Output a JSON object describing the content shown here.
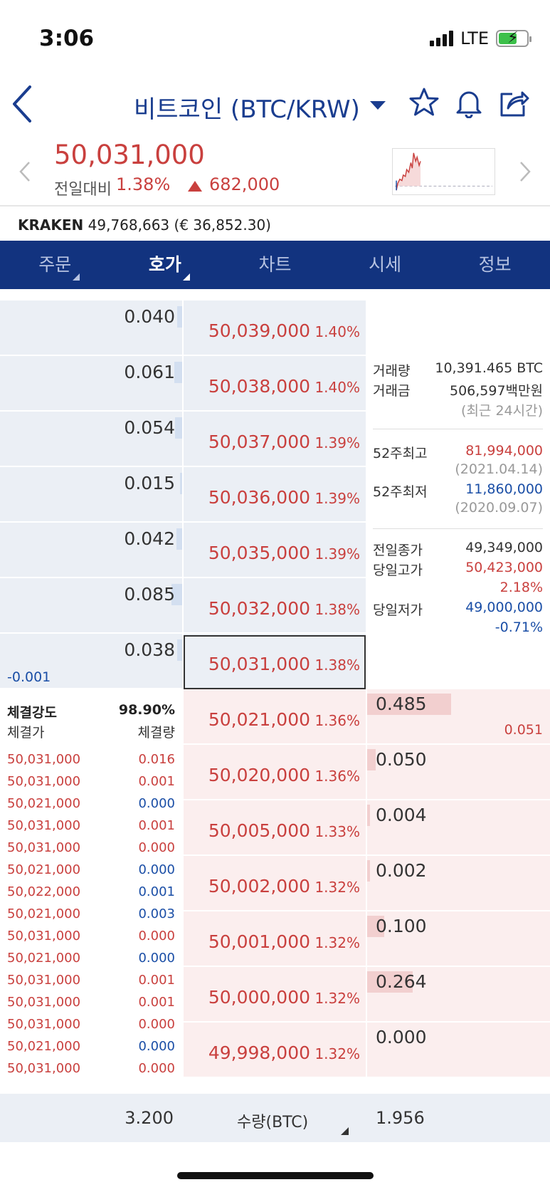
{
  "status": {
    "time": "3:06",
    "network": "LTE"
  },
  "header": {
    "title": "비트코인 (BTC/KRW)"
  },
  "price": {
    "current": "50,031,000",
    "diff_label": "전일대비",
    "diff_pct": "1.38%",
    "diff_amount": "682,000"
  },
  "kraken": {
    "name": "KRAKEN",
    "value": "49,768,663 (€ 36,852.30)"
  },
  "tabs": [
    {
      "label": "주문",
      "active": false
    },
    {
      "label": "호가",
      "active": true
    },
    {
      "label": "차트",
      "active": false
    },
    {
      "label": "시세",
      "active": false
    },
    {
      "label": "정보",
      "active": false
    }
  ],
  "asks": [
    {
      "qty": "0.040",
      "price": "50,039,000",
      "pct": "1.40%",
      "level": 0.04
    },
    {
      "qty": "0.061",
      "price": "50,038,000",
      "pct": "1.40%",
      "level": 0.061
    },
    {
      "qty": "0.054",
      "price": "50,037,000",
      "pct": "1.39%",
      "level": 0.054
    },
    {
      "qty": "0.015",
      "price": "50,036,000",
      "pct": "1.39%",
      "level": 0.015
    },
    {
      "qty": "0.042",
      "price": "50,035,000",
      "pct": "1.39%",
      "level": 0.042
    },
    {
      "qty": "0.085",
      "price": "50,032,000",
      "pct": "1.38%",
      "level": 0.085
    },
    {
      "qty": "0.038",
      "price": "50,031,000",
      "pct": "1.38%",
      "level": 0.038
    }
  ],
  "ask_change": "-0.001",
  "bids": [
    {
      "qty": "0.485",
      "price": "50,021,000",
      "pct": "1.36%",
      "level": 0.485
    },
    {
      "qty": "0.050",
      "price": "50,020,000",
      "pct": "1.36%",
      "level": 0.05
    },
    {
      "qty": "0.004",
      "price": "50,005,000",
      "pct": "1.33%",
      "level": 0.004
    },
    {
      "qty": "0.002",
      "price": "50,002,000",
      "pct": "1.32%",
      "level": 0.002
    },
    {
      "qty": "0.100",
      "price": "50,001,000",
      "pct": "1.32%",
      "level": 0.1
    },
    {
      "qty": "0.264",
      "price": "50,000,000",
      "pct": "1.32%",
      "level": 0.264
    },
    {
      "qty": "0.000",
      "price": "49,998,000",
      "pct": "1.32%",
      "level": 0.0
    }
  ],
  "bid_change": "0.051",
  "info": {
    "volume_label": "거래량",
    "volume": "10,391.465 BTC",
    "amount_label": "거래금",
    "amount": "506,597백만원",
    "period": "(최근 24시간)",
    "high52_label": "52주최고",
    "high52": "81,994,000",
    "high52_date": "(2021.04.14)",
    "low52_label": "52주최저",
    "low52": "11,860,000",
    "low52_date": "(2020.09.07)",
    "prev_close_label": "전일종가",
    "prev_close": "49,349,000",
    "day_high_label": "당일고가",
    "day_high": "50,423,000",
    "day_high_pct": "2.18%",
    "day_low_label": "당일저가",
    "day_low": "49,000,000",
    "day_low_pct": "-0.71%"
  },
  "trades": {
    "strength_label": "체결강도",
    "strength": "98.90%",
    "price_label": "체결가",
    "qty_label": "체결량",
    "rows": [
      {
        "price": "50,031,000",
        "qty": "0.016",
        "side": "buy"
      },
      {
        "price": "50,031,000",
        "qty": "0.001",
        "side": "buy"
      },
      {
        "price": "50,021,000",
        "qty": "0.000",
        "side": "sell"
      },
      {
        "price": "50,031,000",
        "qty": "0.001",
        "side": "buy"
      },
      {
        "price": "50,031,000",
        "qty": "0.000",
        "side": "buy"
      },
      {
        "price": "50,021,000",
        "qty": "0.000",
        "side": "sell"
      },
      {
        "price": "50,022,000",
        "qty": "0.001",
        "side": "sell"
      },
      {
        "price": "50,021,000",
        "qty": "0.003",
        "side": "sell"
      },
      {
        "price": "50,031,000",
        "qty": "0.000",
        "side": "buy"
      },
      {
        "price": "50,021,000",
        "qty": "0.000",
        "side": "sell"
      },
      {
        "price": "50,031,000",
        "qty": "0.001",
        "side": "buy"
      },
      {
        "price": "50,031,000",
        "qty": "0.001",
        "side": "buy"
      },
      {
        "price": "50,031,000",
        "qty": "0.000",
        "side": "buy"
      },
      {
        "price": "50,021,000",
        "qty": "0.000",
        "side": "sell"
      },
      {
        "price": "50,031,000",
        "qty": "0.000",
        "side": "buy"
      }
    ]
  },
  "footer": {
    "ask_total": "3.200",
    "unit_label": "수량(BTC)",
    "bid_total": "1.956"
  },
  "colors": {
    "up": "#c9403e",
    "down": "#1a4ea6",
    "nav": "#12337f"
  }
}
